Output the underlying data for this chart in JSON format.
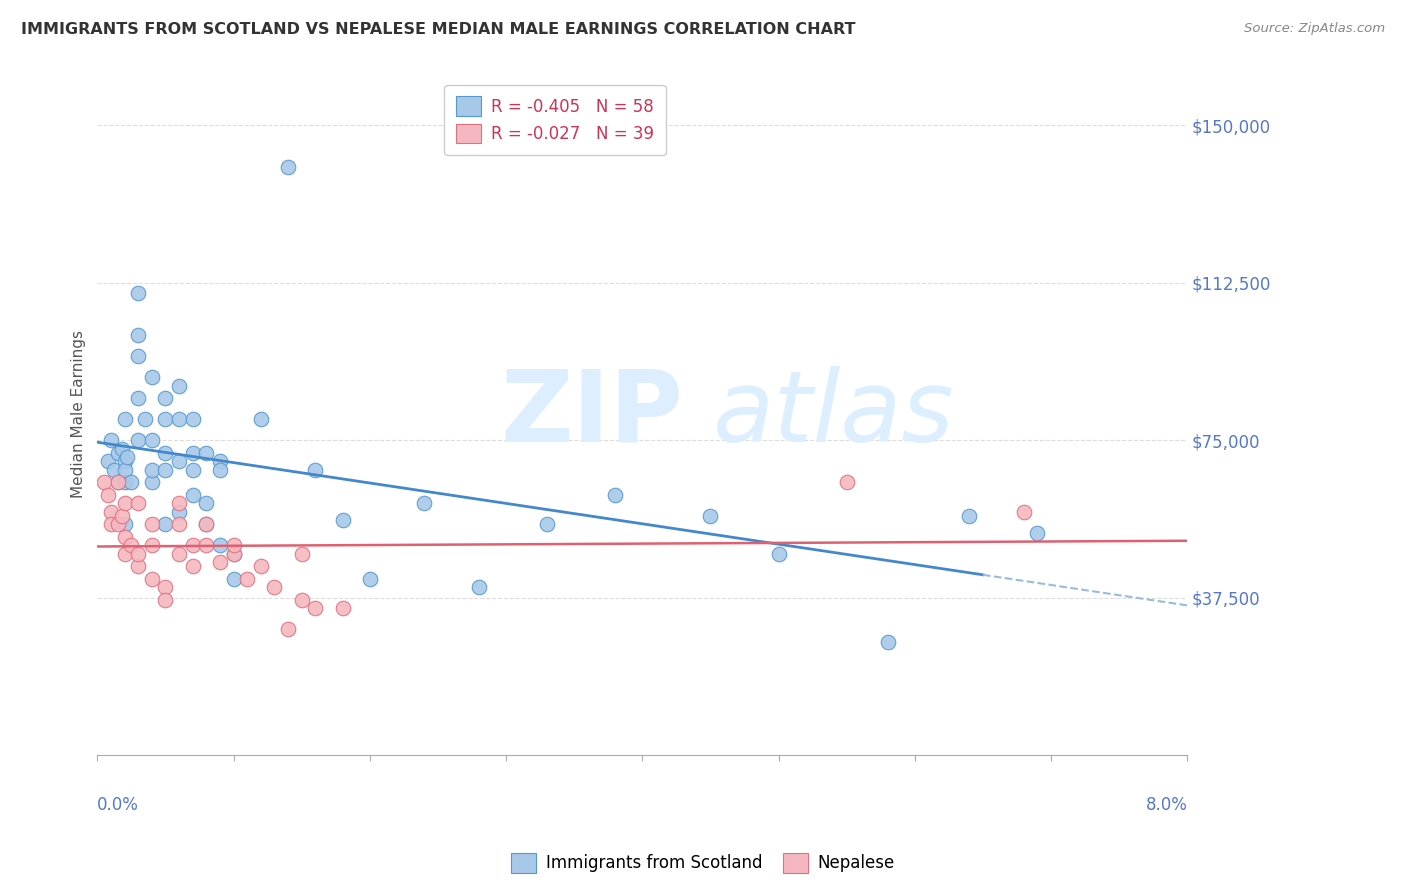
{
  "title": "IMMIGRANTS FROM SCOTLAND VS NEPALESE MEDIAN MALE EARNINGS CORRELATION CHART",
  "source": "Source: ZipAtlas.com",
  "ylabel": "Median Male Earnings",
  "yticks": [
    0,
    37500,
    75000,
    112500,
    150000
  ],
  "xlim": [
    0.0,
    0.08
  ],
  "ylim": [
    0,
    162500
  ],
  "legend1_label": "R = -0.405   N = 58",
  "legend2_label": "R = -0.027   N = 39",
  "scatter_blue_x": [
    0.0008,
    0.001,
    0.0012,
    0.0015,
    0.0015,
    0.0018,
    0.002,
    0.002,
    0.002,
    0.002,
    0.002,
    0.0022,
    0.0025,
    0.003,
    0.003,
    0.003,
    0.003,
    0.003,
    0.0035,
    0.004,
    0.004,
    0.004,
    0.004,
    0.005,
    0.005,
    0.005,
    0.005,
    0.005,
    0.006,
    0.006,
    0.006,
    0.006,
    0.007,
    0.007,
    0.007,
    0.007,
    0.008,
    0.008,
    0.008,
    0.009,
    0.009,
    0.009,
    0.01,
    0.01,
    0.012,
    0.014,
    0.016,
    0.018,
    0.02,
    0.024,
    0.028,
    0.033,
    0.038,
    0.045,
    0.05,
    0.058,
    0.064,
    0.069
  ],
  "scatter_blue_y": [
    70000,
    75000,
    68000,
    72000,
    65000,
    73000,
    70000,
    65000,
    55000,
    80000,
    68000,
    71000,
    65000,
    100000,
    110000,
    95000,
    85000,
    75000,
    80000,
    90000,
    75000,
    65000,
    68000,
    85000,
    72000,
    80000,
    68000,
    55000,
    88000,
    80000,
    70000,
    58000,
    80000,
    72000,
    62000,
    68000,
    55000,
    72000,
    60000,
    70000,
    50000,
    68000,
    48000,
    42000,
    80000,
    140000,
    68000,
    56000,
    42000,
    60000,
    40000,
    55000,
    62000,
    57000,
    48000,
    27000,
    57000,
    53000
  ],
  "scatter_pink_x": [
    0.0005,
    0.0008,
    0.001,
    0.001,
    0.0015,
    0.0015,
    0.0018,
    0.002,
    0.002,
    0.002,
    0.0025,
    0.003,
    0.003,
    0.003,
    0.004,
    0.004,
    0.004,
    0.005,
    0.005,
    0.006,
    0.006,
    0.006,
    0.007,
    0.007,
    0.008,
    0.008,
    0.009,
    0.01,
    0.01,
    0.011,
    0.012,
    0.013,
    0.014,
    0.015,
    0.015,
    0.016,
    0.018,
    0.055,
    0.068
  ],
  "scatter_pink_y": [
    65000,
    62000,
    58000,
    55000,
    65000,
    55000,
    57000,
    52000,
    60000,
    48000,
    50000,
    45000,
    48000,
    60000,
    55000,
    42000,
    50000,
    40000,
    37000,
    60000,
    55000,
    48000,
    50000,
    45000,
    55000,
    50000,
    46000,
    48000,
    50000,
    42000,
    45000,
    40000,
    30000,
    37000,
    48000,
    35000,
    35000,
    65000,
    58000
  ],
  "blue_dot_color": "#a8c8ea",
  "blue_edge_color": "#5599cc",
  "pink_dot_color": "#f5b8c0",
  "pink_edge_color": "#e07080",
  "trend_blue_color": "#4488cc",
  "trend_pink_color": "#e06070",
  "trend_blue_dash_color": "#99bbdd",
  "grid_color": "#dddddd",
  "watermark_color": "#ddeeff",
  "tick_label_color": "#5577cc",
  "title_color": "#333333",
  "source_color": "#888888"
}
